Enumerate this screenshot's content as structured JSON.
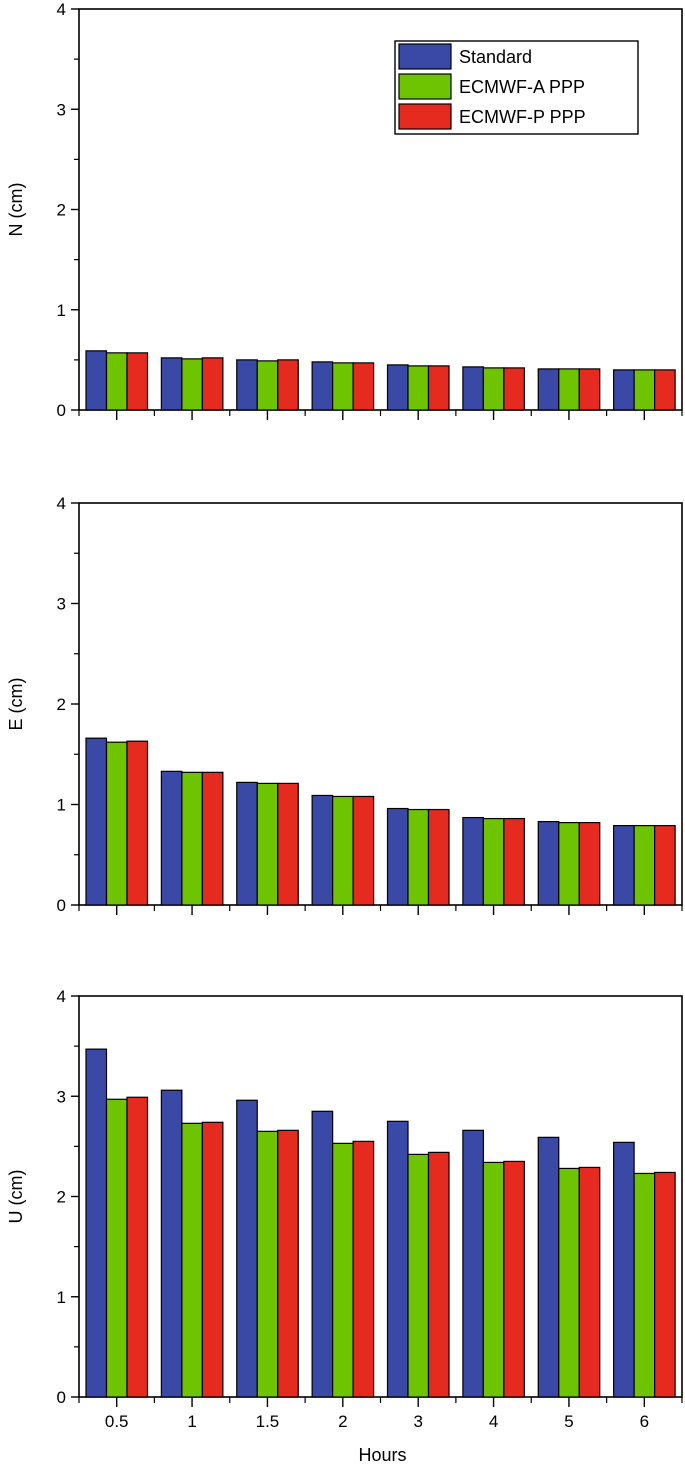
{
  "chart_data": [
    {
      "type": "bar",
      "ylabel": "N (cm)",
      "xlabel": "",
      "ylim": [
        0,
        4
      ],
      "yticks": [
        "0",
        "1",
        "2",
        "3",
        "4"
      ],
      "categories": [
        "0.5",
        "1",
        "1.5",
        "2",
        "3",
        "4",
        "5",
        "6"
      ],
      "show_x_tick_labels": false,
      "legend": "top-right",
      "grid": false,
      "series": [
        {
          "name": "Standard",
          "color": "#3a48a6",
          "values": [
            0.59,
            0.52,
            0.5,
            0.48,
            0.45,
            0.43,
            0.41,
            0.4
          ]
        },
        {
          "name": "ECMWF-A PPP",
          "color": "#6ec400",
          "values": [
            0.57,
            0.51,
            0.49,
            0.47,
            0.44,
            0.42,
            0.41,
            0.4
          ]
        },
        {
          "name": "ECMWF-P PPP",
          "color": "#e52a20",
          "values": [
            0.57,
            0.52,
            0.5,
            0.47,
            0.44,
            0.42,
            0.41,
            0.4
          ]
        }
      ]
    },
    {
      "type": "bar",
      "ylabel": "E (cm)",
      "xlabel": "",
      "ylim": [
        0,
        4
      ],
      "yticks": [
        "0",
        "1",
        "2",
        "3",
        "4"
      ],
      "categories": [
        "0.5",
        "1",
        "1.5",
        "2",
        "3",
        "4",
        "5",
        "6"
      ],
      "show_x_tick_labels": false,
      "legend": "none",
      "grid": false,
      "series": [
        {
          "name": "Standard",
          "color": "#3a48a6",
          "values": [
            1.66,
            1.33,
            1.22,
            1.09,
            0.96,
            0.87,
            0.83,
            0.79
          ]
        },
        {
          "name": "ECMWF-A PPP",
          "color": "#6ec400",
          "values": [
            1.62,
            1.32,
            1.21,
            1.08,
            0.95,
            0.86,
            0.82,
            0.79
          ]
        },
        {
          "name": "ECMWF-P PPP",
          "color": "#e52a20",
          "values": [
            1.63,
            1.32,
            1.21,
            1.08,
            0.95,
            0.86,
            0.82,
            0.79
          ]
        }
      ]
    },
    {
      "type": "bar",
      "ylabel": "U (cm)",
      "xlabel": "Hours",
      "ylim": [
        0,
        4
      ],
      "yticks": [
        "0",
        "1",
        "2",
        "3",
        "4"
      ],
      "categories": [
        "0.5",
        "1",
        "1.5",
        "2",
        "3",
        "4",
        "5",
        "6"
      ],
      "show_x_tick_labels": true,
      "legend": "none",
      "grid": false,
      "series": [
        {
          "name": "Standard",
          "color": "#3a48a6",
          "values": [
            3.47,
            3.06,
            2.96,
            2.85,
            2.75,
            2.66,
            2.59,
            2.54
          ]
        },
        {
          "name": "ECMWF-A PPP",
          "color": "#6ec400",
          "values": [
            2.97,
            2.73,
            2.65,
            2.53,
            2.42,
            2.34,
            2.28,
            2.23
          ]
        },
        {
          "name": "ECMWF-P PPP",
          "color": "#e52a20",
          "values": [
            2.99,
            2.74,
            2.66,
            2.55,
            2.44,
            2.35,
            2.29,
            2.24
          ]
        }
      ]
    }
  ]
}
